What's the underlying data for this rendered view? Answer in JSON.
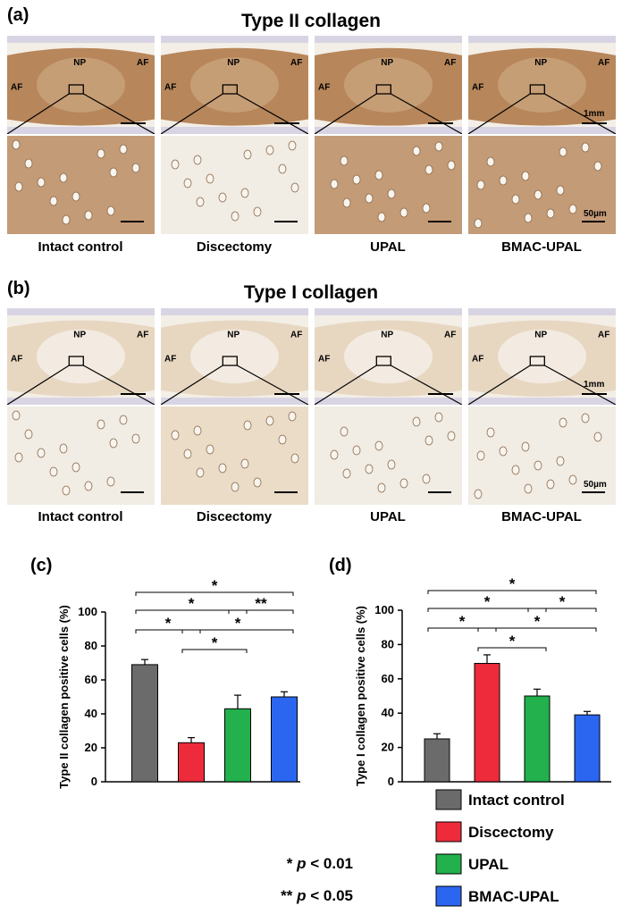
{
  "panels": {
    "a": {
      "label": "(a)",
      "title": "Type II collagen"
    },
    "b": {
      "label": "(b)",
      "title": "Type I collagen"
    },
    "c": {
      "label": "(c)"
    },
    "d": {
      "label": "(d)"
    }
  },
  "groups": [
    "Intact control",
    "Discectomy",
    "UPAL",
    "BMAC-UPAL"
  ],
  "tissue_labels": {
    "np": "NP",
    "af": "AF"
  },
  "scale_bars": {
    "low": "1mm",
    "high": "50µm"
  },
  "colors": {
    "intact": "#6b6b6b",
    "discectomy": "#ee2b3b",
    "upal": "#22b14c",
    "bmac": "#2a66f0",
    "stain_type2": "#b07a4a",
    "stain_type1": "#dcc4a2",
    "background": "#f3eee6"
  },
  "chart_data": [
    {
      "type": "bar",
      "panel": "c",
      "title": "",
      "xlabel": "",
      "ylabel": "Type II collagen positive cells (%)",
      "categories": [
        "Intact control",
        "Discectomy",
        "UPAL",
        "BMAC-UPAL"
      ],
      "values": [
        69,
        23,
        43,
        50
      ],
      "errors": [
        3,
        3,
        8,
        3
      ],
      "ylim": [
        0,
        100
      ],
      "yticks": [
        "0",
        "20",
        "40",
        "60",
        "80",
        "100"
      ],
      "significance": [
        {
          "from": 0,
          "to": 3,
          "label": "*"
        },
        {
          "from": 0,
          "to": 2,
          "label": "*"
        },
        {
          "from": 2,
          "to": 3,
          "label": "**"
        },
        {
          "from": 0,
          "to": 1,
          "label": "*"
        },
        {
          "from": 1,
          "to": 3,
          "label": "*"
        },
        {
          "from": 1,
          "to": 2,
          "label": "*"
        }
      ]
    },
    {
      "type": "bar",
      "panel": "d",
      "title": "",
      "xlabel": "",
      "ylabel": "Type I collagen positive cells (%)",
      "categories": [
        "Intact control",
        "Discectomy",
        "UPAL",
        "BMAC-UPAL"
      ],
      "values": [
        25,
        69,
        50,
        39
      ],
      "errors": [
        3,
        5,
        4,
        2
      ],
      "ylim": [
        0,
        100
      ],
      "yticks": [
        "0",
        "20",
        "40",
        "60",
        "80",
        "100"
      ],
      "significance": [
        {
          "from": 0,
          "to": 3,
          "label": "*"
        },
        {
          "from": 0,
          "to": 2,
          "label": "*"
        },
        {
          "from": 2,
          "to": 3,
          "label": "*"
        },
        {
          "from": 0,
          "to": 1,
          "label": "*"
        },
        {
          "from": 1,
          "to": 3,
          "label": "*"
        },
        {
          "from": 1,
          "to": 2,
          "label": "*"
        }
      ]
    }
  ],
  "legend": {
    "items": [
      "Intact control",
      "Discectomy",
      "UPAL",
      "BMAC-UPAL"
    ],
    "notes": [
      {
        "stars": "*",
        "p": "p",
        "text": " < 0.01"
      },
      {
        "stars": "**",
        "p": "p",
        "text": " < 0.05"
      }
    ]
  }
}
